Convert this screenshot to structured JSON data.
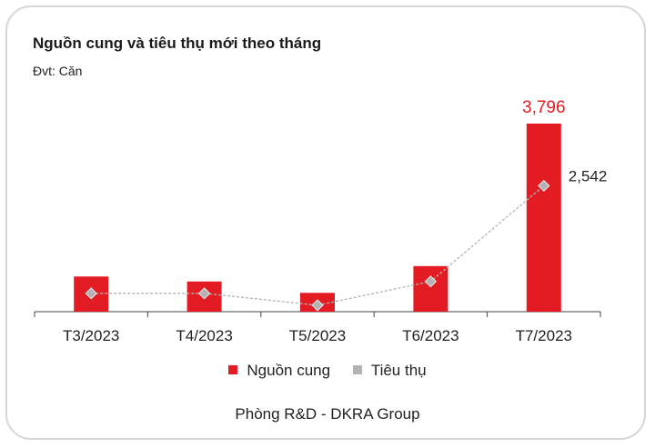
{
  "chart_data": {
    "type": "bar",
    "title": "Nguồn cung và tiêu thụ mới theo tháng",
    "subtitle": "Đvt: Căn",
    "categories": [
      "T3/2023",
      "T4/2023",
      "T5/2023",
      "T6/2023",
      "T7/2023"
    ],
    "series": [
      {
        "name": "Nguồn cung",
        "type": "bar",
        "color": "#e31c23",
        "values": [
          710,
          610,
          380,
          920,
          3796
        ],
        "labels": [
          "",
          "",
          "",
          "",
          "3,796"
        ]
      },
      {
        "name": "Tiêu thụ",
        "type": "line",
        "color": "#b3b3b3",
        "values": [
          370,
          370,
          130,
          610,
          2542
        ],
        "labels": [
          "",
          "",
          "",
          "",
          "2,542"
        ]
      }
    ],
    "ylim": [
      0,
      3796
    ],
    "grid": false,
    "legend_position": "bottom"
  },
  "footer": {
    "source": "Phòng R&D - DKRA Group"
  }
}
